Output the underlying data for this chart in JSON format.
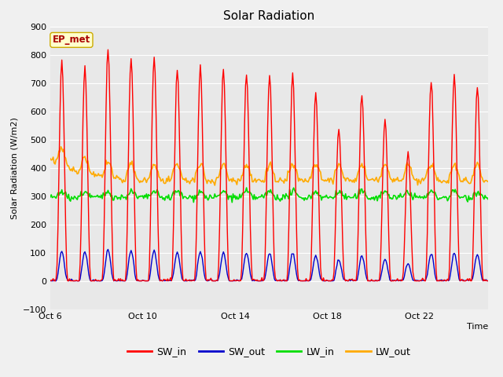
{
  "title": "Solar Radiation",
  "xlabel": "Time",
  "ylabel": "Solar Radiation (W/m2)",
  "ylim": [
    -100,
    900
  ],
  "yticks": [
    -100,
    0,
    100,
    200,
    300,
    400,
    500,
    600,
    700,
    800,
    900
  ],
  "xtick_labels": [
    "Oct 6",
    "Oct 10",
    "Oct 14",
    "Oct 18",
    "Oct 22"
  ],
  "ep_met_label": "EP_met",
  "colors": {
    "SW_in": "#ff0000",
    "SW_out": "#0000cc",
    "LW_in": "#00dd00",
    "LW_out": "#ffaa00"
  },
  "line_widths": {
    "SW_in": 1.0,
    "SW_out": 1.0,
    "LW_in": 1.2,
    "LW_out": 1.2
  },
  "background_color": "#f0f0f0",
  "plot_bg_color": "#e8e8e8",
  "grid_color": "#ffffff",
  "n_days": 19,
  "title_fontsize": 11,
  "label_fontsize": 8,
  "tick_fontsize": 8,
  "legend_fontsize": 9
}
